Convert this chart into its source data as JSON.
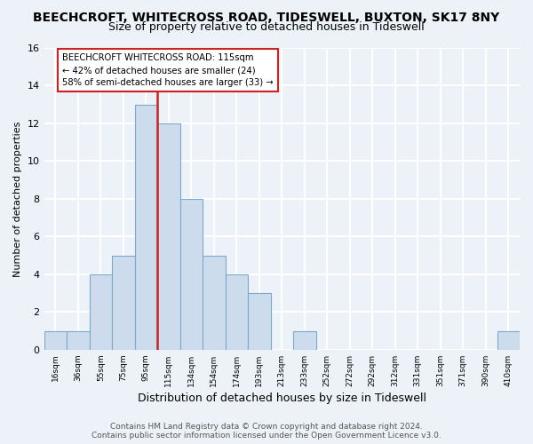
{
  "title": "BEECHCROFT, WHITECROSS ROAD, TIDESWELL, BUXTON, SK17 8NY",
  "subtitle": "Size of property relative to detached houses in Tideswell",
  "xlabel": "Distribution of detached houses by size in Tideswell",
  "ylabel": "Number of detached properties",
  "bin_labels": [
    "16sqm",
    "36sqm",
    "55sqm",
    "75sqm",
    "95sqm",
    "115sqm",
    "134sqm",
    "154sqm",
    "174sqm",
    "193sqm",
    "213sqm",
    "233sqm",
    "252sqm",
    "272sqm",
    "292sqm",
    "312sqm",
    "331sqm",
    "351sqm",
    "371sqm",
    "390sqm",
    "410sqm"
  ],
  "bar_counts": [
    1,
    1,
    4,
    5,
    13,
    12,
    8,
    5,
    4,
    3,
    0,
    1,
    0,
    0,
    0,
    0,
    0,
    0,
    0,
    0,
    1
  ],
  "bar_color": "#ccdcec",
  "bar_edge_color": "#7aaac8",
  "subject_line_index": 5,
  "subject_line_color": "#cc2222",
  "annotation_text": "BEECHCROFT WHITECROSS ROAD: 115sqm\n← 42% of detached houses are smaller (24)\n58% of semi-detached houses are larger (33) →",
  "annotation_box_color": "#ffffff",
  "annotation_box_edge": "#cc2222",
  "ylim": [
    0,
    16
  ],
  "yticks": [
    0,
    2,
    4,
    6,
    8,
    10,
    12,
    14,
    16
  ],
  "footer_line1": "Contains HM Land Registry data © Crown copyright and database right 2024.",
  "footer_line2": "Contains public sector information licensed under the Open Government Licence v3.0.",
  "background_color": "#edf2f8",
  "grid_color": "#ffffff",
  "title_fontsize": 10,
  "subtitle_fontsize": 9,
  "xlabel_fontsize": 9,
  "ylabel_fontsize": 8,
  "footer_fontsize": 6.5
}
